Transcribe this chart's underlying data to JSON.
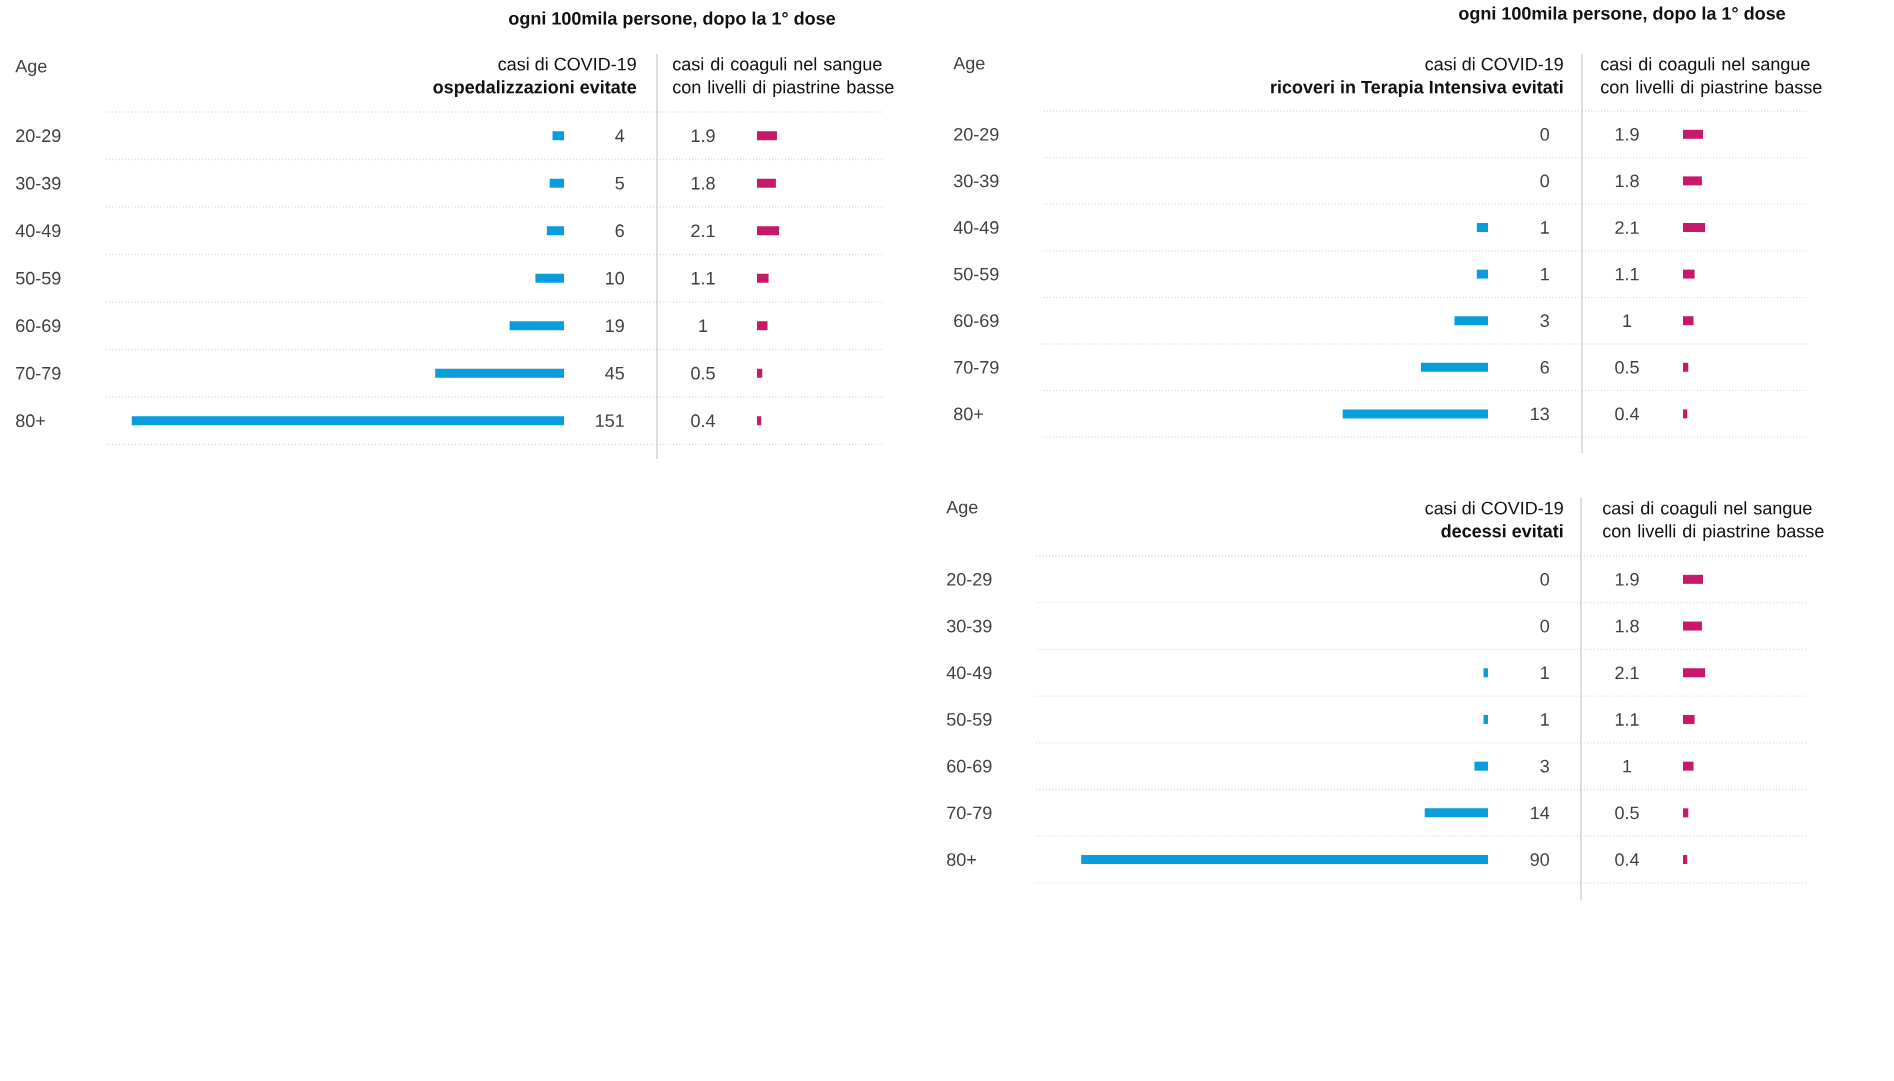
{
  "chart_data": [
    {
      "type": "bar",
      "orientation": "horizontal",
      "title": "casi di COVID-19",
      "subtitle": "ospedalizzazioni evitate",
      "ylabel": "Age",
      "categories": [
        "20-29",
        "30-39",
        "40-49",
        "50-59",
        "60-69",
        "70-79",
        "80+"
      ],
      "values": [
        4,
        5,
        6,
        10,
        19,
        45,
        151
      ],
      "color": "#0a9ddc",
      "xlim": [
        160,
        0
      ],
      "data_labels": true,
      "grid": "y",
      "tick_labels": "y"
    },
    {
      "type": "bar",
      "orientation": "horizontal",
      "title": "casi di coaguli nel sangue con livelli di piastrine basse",
      "annotations": [
        "ogni 100mila persone, dopo la 1° dose"
      ],
      "categories": [
        null,
        null,
        null,
        null,
        null,
        null,
        null
      ],
      "values": [
        1.9,
        1.8,
        2.1,
        1.1,
        1,
        0.5,
        0.4
      ],
      "color": "#c8186a",
      "data_labels": true,
      "grid": "y"
    },
    {
      "type": "bar",
      "orientation": "horizontal",
      "title": "casi di COVID-19",
      "subtitle": "ricoveri in Terapia Intensiva evitati",
      "ylabel": "Age",
      "categories": [
        "20-29",
        "30-39",
        "40-49",
        "50-59",
        "60-69",
        "70-79",
        "80+"
      ],
      "values": [
        0,
        0,
        1,
        1,
        3,
        6,
        13
      ],
      "color": "#0a9ddc",
      "xlim": [
        40,
        0
      ],
      "data_labels": true,
      "grid": "y",
      "tick_labels": "y"
    },
    {
      "type": "bar",
      "orientation": "horizontal",
      "title": "casi di coaguli nel sangue con livelli di piastrine basse",
      "annotations": [
        "ogni 100mila persone, dopo la 1° dose"
      ],
      "categories": [
        null,
        null,
        null,
        null,
        null,
        null,
        null
      ],
      "values": [
        1.9,
        1.8,
        2.1,
        1.1,
        1,
        0.5,
        0.4
      ],
      "color": "#c8186a",
      "data_labels": true,
      "grid": "y"
    },
    {
      "type": "bar",
      "orientation": "horizontal",
      "title": "casi di COVID-19",
      "subtitle": "decessi evitati",
      "ylabel": "Age",
      "categories": [
        "20-29",
        "30-39",
        "40-49",
        "50-59",
        "60-69",
        "70-79",
        "80+"
      ],
      "values": [
        0,
        0,
        1,
        1,
        3,
        14,
        90
      ],
      "color": "#0a9ddc",
      "xlim": [
        100,
        0
      ],
      "data_labels": true,
      "grid": "y",
      "tick_labels": "y"
    },
    {
      "type": "bar",
      "orientation": "horizontal",
      "title": "casi di coaguli nel sangue con livelli di piastrine basse",
      "categories": [
        null,
        null,
        null,
        null,
        null,
        null,
        null
      ],
      "values": [
        1.9,
        1.8,
        2.1,
        1.1,
        1,
        0.5,
        0.4
      ],
      "color": "#c8186a",
      "data_labels": true,
      "grid": "y"
    }
  ]
}
